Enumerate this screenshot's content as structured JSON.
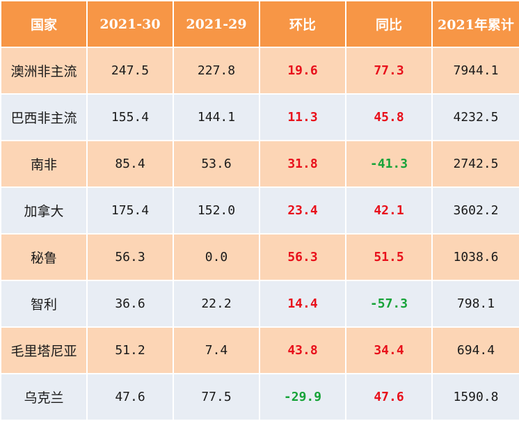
{
  "table": {
    "headers": [
      "国家",
      "2021-30",
      "2021-29",
      "环比",
      "同比",
      "2021年累计"
    ],
    "rows": [
      {
        "country": "澳洲非主流",
        "w30": "247.5",
        "w29": "227.8",
        "wow": "19.6",
        "yoy": "77.3",
        "ytd": "7944.1"
      },
      {
        "country": "巴西非主流",
        "w30": "155.4",
        "w29": "144.1",
        "wow": "11.3",
        "yoy": "45.8",
        "ytd": "4232.5"
      },
      {
        "country": "南非",
        "w30": "85.4",
        "w29": "53.6",
        "wow": "31.8",
        "yoy": "-41.3",
        "ytd": "2742.5"
      },
      {
        "country": "加拿大",
        "w30": "175.4",
        "w29": "152.0",
        "wow": "23.4",
        "yoy": "42.1",
        "ytd": "3602.2"
      },
      {
        "country": "秘鲁",
        "w30": "56.3",
        "w29": "0.0",
        "wow": "56.3",
        "yoy": "51.5",
        "ytd": "1038.6"
      },
      {
        "country": "智利",
        "w30": "36.6",
        "w29": "22.2",
        "wow": "14.4",
        "yoy": "-57.3",
        "ytd": "798.1"
      },
      {
        "country": "毛里塔尼亚",
        "w30": "51.2",
        "w29": "7.4",
        "wow": "43.8",
        "yoy": "34.4",
        "ytd": "694.4"
      },
      {
        "country": "乌克兰",
        "w30": "47.6",
        "w29": "77.5",
        "wow": "-29.9",
        "yoy": "47.6",
        "ytd": "1590.8"
      }
    ]
  },
  "colors": {
    "header_bg": "#f79646",
    "row_odd_bg": "#fcd5b5",
    "row_even_bg": "#e8edf4",
    "positive": "#e8101b",
    "negative": "#17a339"
  }
}
